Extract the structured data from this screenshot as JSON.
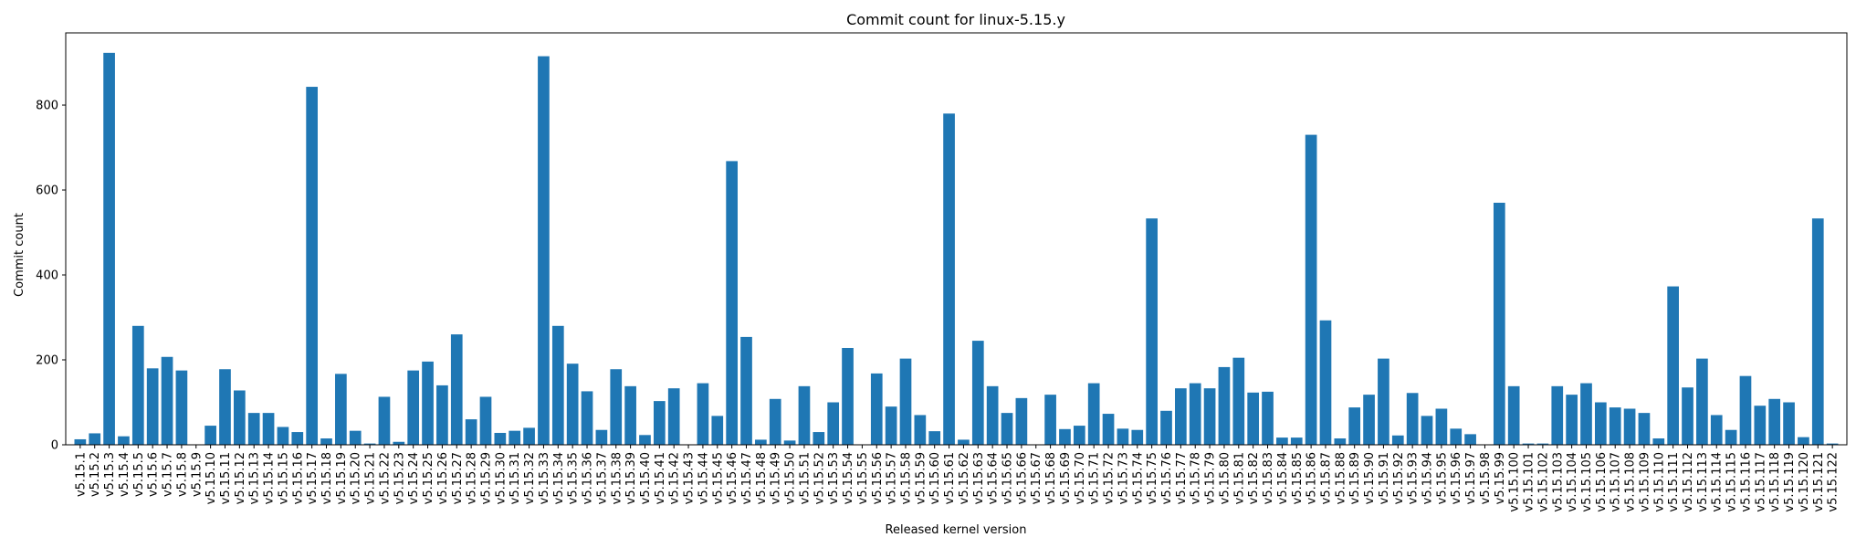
{
  "chart_data": {
    "type": "bar",
    "title": "Commit count for linux-5.15.y",
    "xlabel": "Released kernel version",
    "ylabel": "Commit count",
    "ylim": [
      0,
      970
    ],
    "yticks": [
      0,
      200,
      400,
      600,
      800
    ],
    "grid": false,
    "bar_color": "#1f77b4",
    "categories": [
      "v5.15.1",
      "v5.15.2",
      "v5.15.3",
      "v5.15.4",
      "v5.15.5",
      "v5.15.6",
      "v5.15.7",
      "v5.15.8",
      "v5.15.9",
      "v5.15.10",
      "v5.15.11",
      "v5.15.12",
      "v5.15.13",
      "v5.15.14",
      "v5.15.15",
      "v5.15.16",
      "v5.15.17",
      "v5.15.18",
      "v5.15.19",
      "v5.15.20",
      "v5.15.21",
      "v5.15.22",
      "v5.15.23",
      "v5.15.24",
      "v5.15.25",
      "v5.15.26",
      "v5.15.27",
      "v5.15.28",
      "v5.15.29",
      "v5.15.30",
      "v5.15.31",
      "v5.15.32",
      "v5.15.33",
      "v5.15.34",
      "v5.15.35",
      "v5.15.36",
      "v5.15.37",
      "v5.15.38",
      "v5.15.39",
      "v5.15.40",
      "v5.15.41",
      "v5.15.42",
      "v5.15.43",
      "v5.15.44",
      "v5.15.45",
      "v5.15.46",
      "v5.15.47",
      "v5.15.48",
      "v5.15.49",
      "v5.15.50",
      "v5.15.51",
      "v5.15.52",
      "v5.15.53",
      "v5.15.54",
      "v5.15.55",
      "v5.15.56",
      "v5.15.57",
      "v5.15.58",
      "v5.15.59",
      "v5.15.60",
      "v5.15.61",
      "v5.15.62",
      "v5.15.63",
      "v5.15.64",
      "v5.15.65",
      "v5.15.66",
      "v5.15.67",
      "v5.15.68",
      "v5.15.69",
      "v5.15.70",
      "v5.15.71",
      "v5.15.72",
      "v5.15.73",
      "v5.15.74",
      "v5.15.75",
      "v5.15.76",
      "v5.15.77",
      "v5.15.78",
      "v5.15.79",
      "v5.15.80",
      "v5.15.81",
      "v5.15.82",
      "v5.15.83",
      "v5.15.84",
      "v5.15.85",
      "v5.15.86",
      "v5.15.87",
      "v5.15.88",
      "v5.15.89",
      "v5.15.90",
      "v5.15.91",
      "v5.15.92",
      "v5.15.93",
      "v5.15.94",
      "v5.15.95",
      "v5.15.96",
      "v5.15.97",
      "v5.15.98",
      "v5.15.99",
      "v5.15.100",
      "v5.15.101",
      "v5.15.102",
      "v5.15.103",
      "v5.15.104",
      "v5.15.105",
      "v5.15.106",
      "v5.15.107",
      "v5.15.108",
      "v5.15.109",
      "v5.15.110",
      "v5.15.111",
      "v5.15.112",
      "v5.15.113",
      "v5.15.114",
      "v5.15.115",
      "v5.15.116",
      "v5.15.117",
      "v5.15.118",
      "v5.15.119",
      "v5.15.120",
      "v5.15.121",
      "v5.15.122"
    ],
    "values": [
      13,
      27,
      923,
      20,
      280,
      180,
      207,
      175,
      0,
      45,
      178,
      128,
      75,
      75,
      42,
      30,
      843,
      15,
      167,
      33,
      3,
      113,
      7,
      175,
      196,
      140,
      260,
      60,
      113,
      28,
      33,
      40,
      915,
      280,
      191,
      126,
      35,
      178,
      138,
      23,
      103,
      133,
      0,
      145,
      68,
      668,
      254,
      12,
      108,
      10,
      138,
      30,
      100,
      228,
      0,
      168,
      90,
      203,
      70,
      32,
      780,
      12,
      245,
      138,
      75,
      110,
      0,
      118,
      37,
      45,
      145,
      73,
      38,
      35,
      533,
      80,
      133,
      145,
      133,
      183,
      205,
      123,
      125,
      17,
      17,
      730,
      293,
      15,
      88,
      118,
      203,
      22,
      122,
      68,
      85,
      38,
      25,
      0,
      570,
      138,
      3,
      3,
      138,
      118,
      145,
      100,
      88,
      85,
      75,
      15,
      373,
      135,
      203,
      70,
      35,
      162,
      92,
      108,
      100,
      18,
      533,
      3
    ]
  }
}
